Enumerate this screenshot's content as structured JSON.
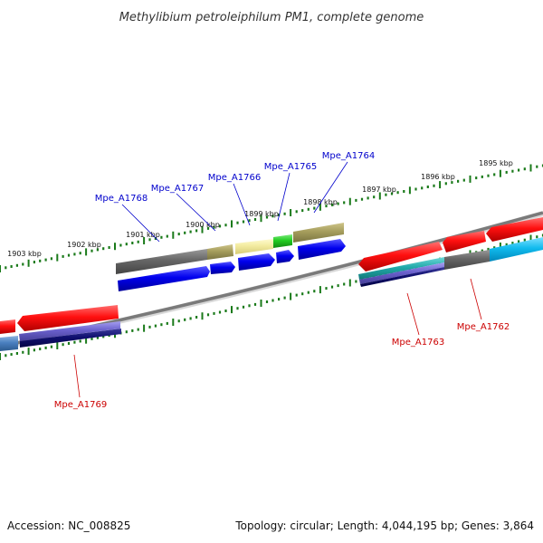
{
  "title": "Methylibium petroleiphilum PM1, complete genome",
  "footer": {
    "accession": "Accession: NC_008825",
    "summary": "Topology: circular; Length: 4,044,195 bp; Genes: 3,864"
  },
  "colors": {
    "forward_label": "#0000cc",
    "reverse_label": "#cc0000",
    "tick": "#1a7a1a",
    "backbone": "#888888"
  },
  "scale": {
    "tick_labels": [
      "1895 kbp",
      "1896 kbp",
      "1897 kbp",
      "1898 kbp",
      "1899 kbp",
      "1900 kbp",
      "1901 kbp",
      "1902 kbp",
      "1903 kbp"
    ]
  },
  "forward_genes": [
    "Mpe_A1764",
    "Mpe_A1765",
    "Mpe_A1766",
    "Mpe_A1767",
    "Mpe_A1768"
  ],
  "reverse_genes": [
    "Mpe_A1762",
    "Mpe_A1763",
    "Mpe_A1769"
  ]
}
